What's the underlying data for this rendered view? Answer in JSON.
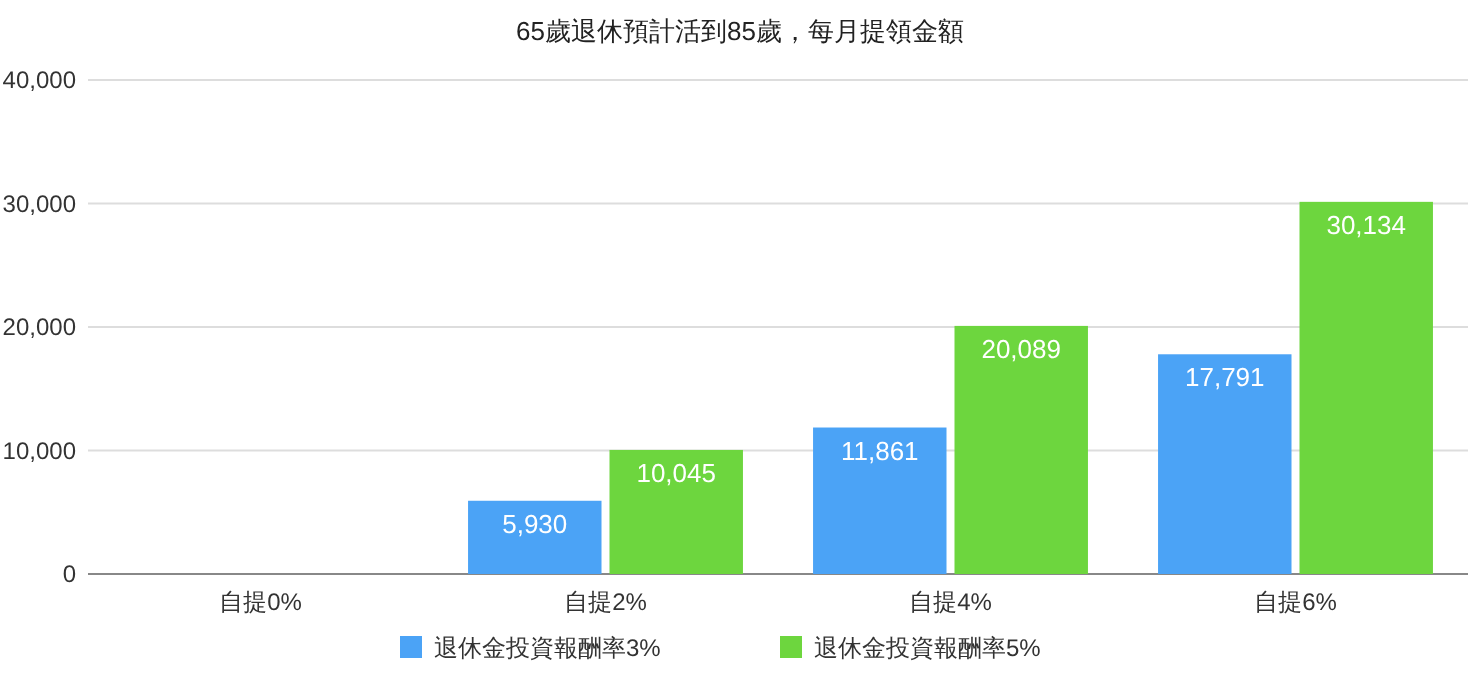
{
  "chart_data": {
    "type": "bar",
    "title": "65歲退休預計活到85歲，每月提領金額",
    "categories": [
      "自提0%",
      "自提2%",
      "自提4%",
      "自提6%"
    ],
    "series": [
      {
        "name": "退休金投資報酬率3%",
        "color": "#4ba3f6",
        "values": [
          null,
          5930,
          11861,
          17791
        ],
        "value_labels": [
          null,
          "5,930",
          "11,861",
          "17,791"
        ]
      },
      {
        "name": "退休金投資報酬率5%",
        "color": "#6dd63e",
        "values": [
          null,
          10045,
          20089,
          30134
        ],
        "value_labels": [
          null,
          "10,045",
          "20,089",
          "30,134"
        ]
      }
    ],
    "ylim": [
      0,
      40000
    ],
    "yticks": [
      {
        "value": 0,
        "label": "0"
      },
      {
        "value": 10000,
        "label": "10,000"
      },
      {
        "value": 20000,
        "label": "20,000"
      },
      {
        "value": 30000,
        "label": "30,000"
      },
      {
        "value": 40000,
        "label": "40,000"
      }
    ],
    "grid": "y",
    "legend": "bottom"
  }
}
